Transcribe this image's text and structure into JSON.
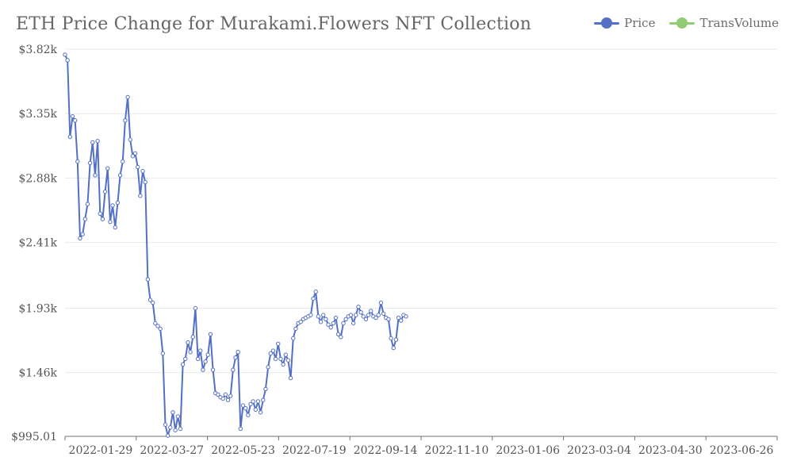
{
  "page": {
    "title": "ETH Price Change for Murakami.Flowers NFT Collection"
  },
  "legend": [
    {
      "label": "Price",
      "color": "#5470c6"
    },
    {
      "label": "TransVolume",
      "color": "#91cc75"
    }
  ],
  "chart_data": {
    "type": "line",
    "title": "ETH Price Change for Murakami.Flowers NFT Collection",
    "xlabel": "",
    "ylabel": "",
    "ylim": [
      995.01,
      3820
    ],
    "y_ticks": [
      995.01,
      1460,
      1930,
      2410,
      2880,
      3350,
      3820
    ],
    "y_tick_labels": [
      "$995.01",
      "$1.46k",
      "$1.93k",
      "$2.41k",
      "$2.88k",
      "$3.35k",
      "$3.82k"
    ],
    "x_range": [
      "2022-01-01",
      "2023-07-23"
    ],
    "x_tick_labels": [
      "2022-01-29",
      "2022-03-27",
      "2022-05-23",
      "2022-07-19",
      "2022-09-14",
      "2022-11-10",
      "2023-01-06",
      "2023-03-04",
      "2023-04-30",
      "2023-06-26"
    ],
    "grid": true,
    "legend_position": "top-right",
    "series": [
      {
        "name": "Price",
        "color": "#5470c6",
        "points": [
          [
            "2022-01-01",
            3780
          ],
          [
            "2022-01-03",
            3740
          ],
          [
            "2022-01-05",
            3180
          ],
          [
            "2022-01-07",
            3330
          ],
          [
            "2022-01-09",
            3300
          ],
          [
            "2022-01-11",
            3000
          ],
          [
            "2022-01-13",
            2440
          ],
          [
            "2022-01-15",
            2470
          ],
          [
            "2022-01-17",
            2580
          ],
          [
            "2022-01-19",
            2690
          ],
          [
            "2022-01-21",
            2990
          ],
          [
            "2022-01-23",
            3140
          ],
          [
            "2022-01-25",
            2900
          ],
          [
            "2022-01-27",
            3150
          ],
          [
            "2022-01-29",
            2620
          ],
          [
            "2022-01-31",
            2580
          ],
          [
            "2022-02-02",
            2780
          ],
          [
            "2022-02-04",
            2950
          ],
          [
            "2022-02-06",
            2560
          ],
          [
            "2022-02-08",
            2680
          ],
          [
            "2022-02-10",
            2520
          ],
          [
            "2022-02-12",
            2700
          ],
          [
            "2022-02-14",
            2900
          ],
          [
            "2022-02-16",
            3000
          ],
          [
            "2022-02-18",
            3300
          ],
          [
            "2022-02-20",
            3470
          ],
          [
            "2022-02-22",
            3160
          ],
          [
            "2022-02-24",
            3040
          ],
          [
            "2022-02-26",
            3060
          ],
          [
            "2022-02-28",
            2960
          ],
          [
            "2022-03-02",
            2750
          ],
          [
            "2022-03-04",
            2930
          ],
          [
            "2022-03-06",
            2850
          ],
          [
            "2022-03-08",
            2140
          ],
          [
            "2022-03-10",
            1990
          ],
          [
            "2022-03-12",
            1970
          ],
          [
            "2022-03-14",
            1820
          ],
          [
            "2022-03-16",
            1800
          ],
          [
            "2022-03-18",
            1780
          ],
          [
            "2022-03-20",
            1600
          ],
          [
            "2022-03-22",
            1080
          ],
          [
            "2022-03-24",
            1000
          ],
          [
            "2022-03-26",
            1060
          ],
          [
            "2022-03-28",
            1170
          ],
          [
            "2022-03-30",
            1040
          ],
          [
            "2022-04-01",
            1140
          ],
          [
            "2022-04-03",
            1050
          ],
          [
            "2022-04-05",
            1520
          ],
          [
            "2022-04-07",
            1560
          ],
          [
            "2022-04-09",
            1680
          ],
          [
            "2022-04-11",
            1610
          ],
          [
            "2022-04-13",
            1720
          ],
          [
            "2022-04-15",
            1930
          ],
          [
            "2022-04-17",
            1560
          ],
          [
            "2022-04-19",
            1620
          ],
          [
            "2022-04-21",
            1480
          ],
          [
            "2022-04-23",
            1540
          ],
          [
            "2022-04-25",
            1590
          ],
          [
            "2022-04-27",
            1740
          ],
          [
            "2022-04-29",
            1480
          ],
          [
            "2022-05-01",
            1310
          ],
          [
            "2022-05-03",
            1300
          ],
          [
            "2022-05-05",
            1280
          ],
          [
            "2022-05-07",
            1270
          ],
          [
            "2022-05-09",
            1300
          ],
          [
            "2022-05-11",
            1260
          ],
          [
            "2022-05-13",
            1290
          ],
          [
            "2022-05-15",
            1480
          ],
          [
            "2022-05-17",
            1570
          ],
          [
            "2022-05-19",
            1610
          ],
          [
            "2022-05-21",
            1050
          ],
          [
            "2022-05-23",
            1220
          ],
          [
            "2022-05-25",
            1200
          ],
          [
            "2022-05-27",
            1150
          ],
          [
            "2022-05-29",
            1230
          ],
          [
            "2022-05-31",
            1250
          ],
          [
            "2022-06-02",
            1190
          ],
          [
            "2022-06-04",
            1250
          ],
          [
            "2022-06-06",
            1170
          ],
          [
            "2022-06-08",
            1260
          ],
          [
            "2022-06-10",
            1340
          ],
          [
            "2022-06-12",
            1500
          ],
          [
            "2022-06-14",
            1600
          ],
          [
            "2022-06-16",
            1620
          ],
          [
            "2022-06-18",
            1560
          ],
          [
            "2022-06-20",
            1670
          ],
          [
            "2022-06-22",
            1560
          ],
          [
            "2022-06-24",
            1520
          ],
          [
            "2022-06-26",
            1590
          ],
          [
            "2022-06-28",
            1550
          ],
          [
            "2022-06-30",
            1420
          ],
          [
            "2022-07-02",
            1710
          ],
          [
            "2022-07-04",
            1780
          ],
          [
            "2022-07-06",
            1820
          ],
          [
            "2022-07-08",
            1830
          ],
          [
            "2022-07-10",
            1850
          ],
          [
            "2022-07-12",
            1860
          ],
          [
            "2022-07-14",
            1870
          ],
          [
            "2022-07-16",
            1880
          ],
          [
            "2022-07-18",
            2000
          ],
          [
            "2022-07-20",
            2050
          ],
          [
            "2022-07-22",
            1870
          ],
          [
            "2022-07-24",
            1830
          ],
          [
            "2022-07-26",
            1880
          ],
          [
            "2022-07-28",
            1850
          ],
          [
            "2022-07-30",
            1810
          ],
          [
            "2022-08-01",
            1790
          ],
          [
            "2022-08-03",
            1820
          ],
          [
            "2022-08-05",
            1860
          ],
          [
            "2022-08-07",
            1740
          ],
          [
            "2022-08-09",
            1720
          ],
          [
            "2022-08-11",
            1820
          ],
          [
            "2022-08-13",
            1850
          ],
          [
            "2022-08-15",
            1870
          ],
          [
            "2022-08-17",
            1880
          ],
          [
            "2022-08-19",
            1820
          ],
          [
            "2022-08-21",
            1880
          ],
          [
            "2022-08-23",
            1940
          ],
          [
            "2022-08-25",
            1900
          ],
          [
            "2022-08-27",
            1870
          ],
          [
            "2022-08-29",
            1850
          ],
          [
            "2022-08-31",
            1880
          ],
          [
            "2022-09-02",
            1910
          ],
          [
            "2022-09-04",
            1870
          ],
          [
            "2022-09-06",
            1860
          ],
          [
            "2022-09-08",
            1880
          ],
          [
            "2022-09-10",
            1970
          ],
          [
            "2022-09-12",
            1890
          ],
          [
            "2022-09-14",
            1860
          ],
          [
            "2022-09-16",
            1850
          ],
          [
            "2022-09-18",
            1710
          ],
          [
            "2022-09-20",
            1640
          ],
          [
            "2022-09-22",
            1700
          ],
          [
            "2022-09-24",
            1860
          ],
          [
            "2022-09-26",
            1840
          ],
          [
            "2022-09-28",
            1880
          ],
          [
            "2022-09-30",
            1870
          ]
        ]
      }
    ],
    "series_note_hidden": "TransVolume series has no visible marks in the plot"
  }
}
